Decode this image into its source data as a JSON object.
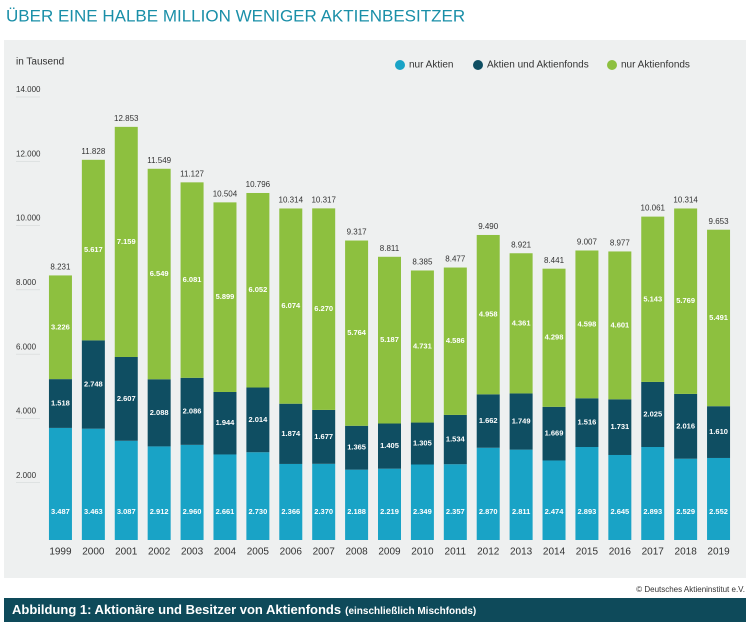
{
  "chart_data": {
    "type": "stacked_bar",
    "title": "ÜBER EINE HALBE MILLION WENIGER AKTIENBESITZER",
    "y_label": "in Tausend",
    "categories": [
      "1999",
      "2000",
      "2001",
      "2002",
      "2003",
      "2004",
      "2005",
      "2006",
      "2007",
      "2008",
      "2009",
      "2010",
      "2011",
      "2012",
      "2013",
      "2014",
      "2015",
      "2016",
      "2017",
      "2018",
      "2019"
    ],
    "series": [
      {
        "name": "nur Aktien",
        "color": "#19a3c6",
        "values": [
          3487,
          3463,
          3087,
          2912,
          2960,
          2661,
          2730,
          2366,
          2370,
          2188,
          2219,
          2349,
          2357,
          2870,
          2811,
          2474,
          2893,
          2645,
          2893,
          2529,
          2552
        ],
        "value_labels": [
          "3.487",
          "3.463",
          "3.087",
          "2.912",
          "2.960",
          "2.661",
          "2.730",
          "2.366",
          "2.370",
          "2.188",
          "2.219",
          "2.349",
          "2.357",
          "2.870",
          "2.811",
          "2.474",
          "2.893",
          "2.645",
          "2.893",
          "2.529",
          "2.552"
        ]
      },
      {
        "name": "Aktien und Aktienfonds",
        "color": "#0f4e62",
        "values": [
          1518,
          2748,
          2607,
          2088,
          2086,
          1944,
          2014,
          1874,
          1677,
          1365,
          1405,
          1305,
          1534,
          1662,
          1749,
          1669,
          1516,
          1731,
          2025,
          2016,
          1610
        ],
        "value_labels": [
          "1.518",
          "2.748",
          "2.607",
          "2.088",
          "2.086",
          "1.944",
          "2.014",
          "1.874",
          "1.677",
          "1.365",
          "1.405",
          "1.305",
          "1.534",
          "1.662",
          "1.749",
          "1.669",
          "1.516",
          "1.731",
          "2.025",
          "2.016",
          "1.610"
        ]
      },
      {
        "name": "nur Aktienfonds",
        "color": "#8dc03f",
        "values": [
          3226,
          5617,
          7159,
          6549,
          6081,
          5899,
          6052,
          6074,
          6270,
          5764,
          5187,
          4731,
          4586,
          4958,
          4361,
          4298,
          4598,
          4601,
          5143,
          5769,
          5491
        ],
        "value_labels": [
          "3.226",
          "5.617",
          "7.159",
          "6.549",
          "6.081",
          "5.899",
          "6.052",
          "6.074",
          "6.270",
          "5.764",
          "5.187",
          "4.731",
          "4.586",
          "4.958",
          "4.361",
          "4.298",
          "4.598",
          "4.601",
          "5.143",
          "5.769",
          "5.491"
        ]
      }
    ],
    "totals": {
      "values": [
        8231,
        11828,
        12853,
        11549,
        11127,
        10504,
        10796,
        10314,
        10317,
        9317,
        8811,
        8385,
        8477,
        9490,
        8921,
        8441,
        9007,
        8977,
        10061,
        10314,
        9653
      ],
      "value_labels": [
        "8.231",
        "11.828",
        "12.853",
        "11.549",
        "11.127",
        "10.504",
        "10.796",
        "10.314",
        "10.317",
        "9.317",
        "8.811",
        "8.385",
        "8.477",
        "9.490",
        "8.921",
        "8.441",
        "9.007",
        "8.977",
        "10.061",
        "10.314",
        "9.653"
      ]
    },
    "ylim": [
      0,
      14000
    ],
    "yticks": [
      {
        "value": 2000,
        "label": "2.000"
      },
      {
        "value": 4000,
        "label": "4.000"
      },
      {
        "value": 6000,
        "label": "6.000"
      },
      {
        "value": 8000,
        "label": "8.000"
      },
      {
        "value": 10000,
        "label": "10.000"
      },
      {
        "value": 12000,
        "label": "12.000"
      },
      {
        "value": 14000,
        "label": "14.000"
      }
    ],
    "legend": "top-right",
    "source": "© Deutsches Aktieninstitut e.V."
  },
  "caption": {
    "label": "Abbildung 1:  Aktionäre und Besitzer von Aktienfonds",
    "note": "(einschließlich Mischfonds)"
  }
}
